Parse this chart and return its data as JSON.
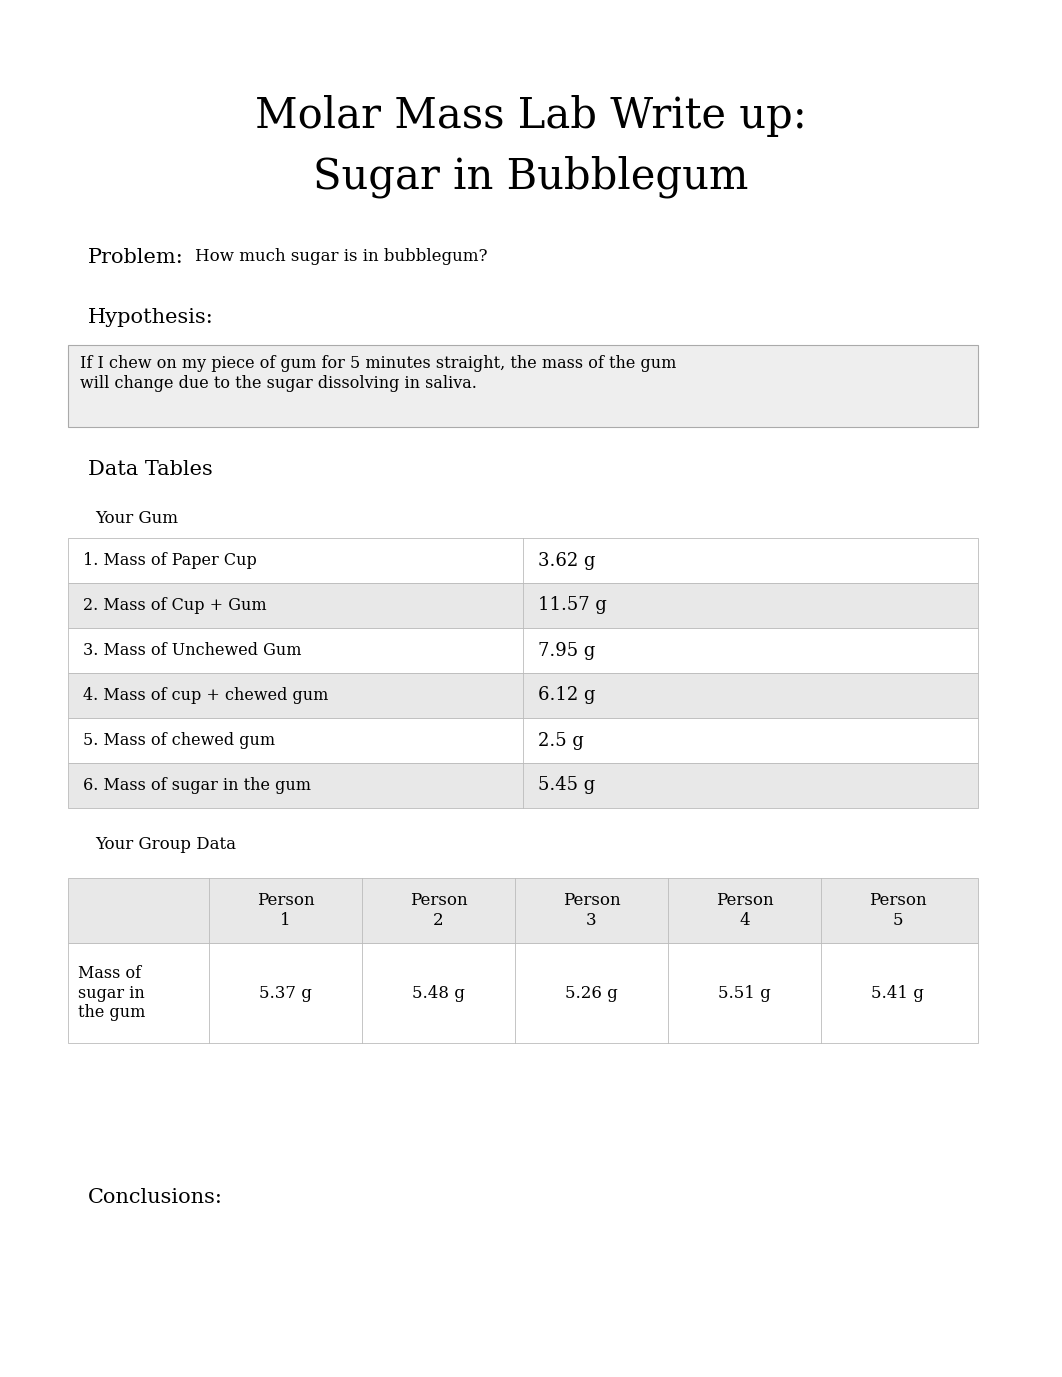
{
  "title_line1": "Molar Mass Lab Write up:",
  "title_line2": "Sugar in Bubblegum",
  "problem_label": "Problem:",
  "problem_text": "How much sugar is in bubblegum?",
  "hypothesis_label": "Hypothesis:",
  "hypothesis_box_text": "If I chew on my piece of gum for 5 minutes straight, the mass of the gum\nwill change due to the sugar dissolving in saliva.",
  "data_tables_label": "Data Tables",
  "your_gum_label": "Your Gum",
  "your_gum_rows": [
    [
      "1. Mass of Paper Cup",
      "3.62 g"
    ],
    [
      "2. Mass of Cup + Gum",
      "11.57 g"
    ],
    [
      "3. Mass of Unchewed Gum",
      "7.95 g"
    ],
    [
      "4. Mass of cup + chewed gum",
      "6.12 g"
    ],
    [
      "5. Mass of chewed gum",
      "2.5 g"
    ],
    [
      "6. Mass of sugar in the gum",
      "5.45 g"
    ]
  ],
  "your_group_label": "Your Group Data",
  "group_col_headers": [
    "Person\n1",
    "Person\n2",
    "Person\n3",
    "Person\n4",
    "Person\n5"
  ],
  "group_row_label": "Mass of\nsugar in\nthe gum",
  "group_values": [
    "5.37 g",
    "5.48 g",
    "5.26 g",
    "5.51 g",
    "5.41 g"
  ],
  "conclusions_label": "Conclusions:",
  "bg_color": "#ffffff",
  "text_color": "#000000",
  "table_bg_light": "#e8e8e8",
  "table_bg_white": "#ffffff",
  "table_border_color": "#bbbbbb",
  "box_bg_color": "#eeeeee"
}
